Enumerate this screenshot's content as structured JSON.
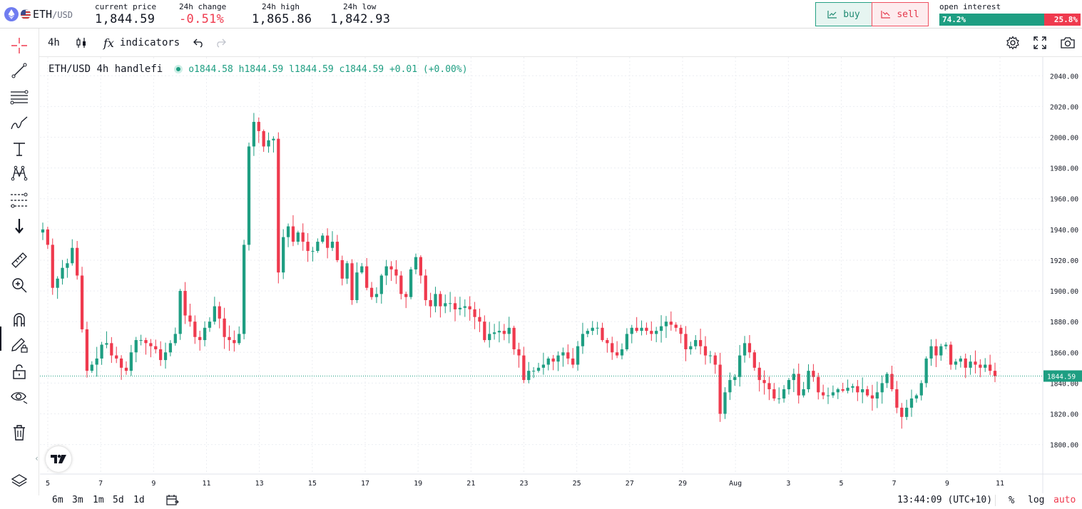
{
  "header": {
    "pair_base": "ETH",
    "pair_quote": "/USD",
    "stats": [
      {
        "label": "current price",
        "value": "1,844.59",
        "negative": false
      },
      {
        "label": "24h change",
        "value": "-0.51%",
        "negative": true
      },
      {
        "label": "24h high",
        "value": "1,865.86",
        "negative": false
      },
      {
        "label": "24h low",
        "value": "1,842.93",
        "negative": false
      }
    ],
    "buy_label": "buy",
    "sell_label": "sell",
    "open_interest_label": "open interest",
    "oi_long_pct": "74.2%",
    "oi_short_pct": "25.8%",
    "oi_long_fraction": 0.742
  },
  "toolbar": {
    "interval": "4h",
    "indicators_label": "indicators"
  },
  "legend": {
    "symbol": "ETH/USD",
    "interval": "4h",
    "source": "handlefi",
    "ohlc": "o1844.58 h1844.59 l1844.59 c1844.59 +0.01 (+0.00%)"
  },
  "bottom": {
    "ranges": [
      "6m",
      "3m",
      "1m",
      "5d",
      "1d"
    ],
    "clock": "13:44:09 (UTC+10)",
    "percent_label": "%",
    "log_label": "log",
    "auto_label": "auto"
  },
  "colors": {
    "up": "#1e9e82",
    "down": "#ef3a4e",
    "grid": "#eceef2"
  },
  "chart_data": {
    "type": "candlestick",
    "y_ticks": [
      "2040.00",
      "2020.00",
      "2000.00",
      "1980.00",
      "1960.00",
      "1940.00",
      "1920.00",
      "1900.00",
      "1880.00",
      "1860.00",
      "1840.00",
      "1820.00",
      "1800.00"
    ],
    "ylim": [
      1780.8,
      2052.2
    ],
    "x_ticks": [
      "5",
      "7",
      "9",
      "11",
      "13",
      "15",
      "17",
      "19",
      "21",
      "23",
      "25",
      "27",
      "29",
      "Aug",
      "3",
      "5",
      "7",
      "9",
      "11"
    ],
    "last_price": 1844.59,
    "last_price_label": "1844.59",
    "closes": [
      1940,
      1930,
      1902,
      1908,
      1915,
      1918,
      1928,
      1910,
      1875,
      1848,
      1852,
      1856,
      1865,
      1866,
      1858,
      1856,
      1850,
      1848,
      1860,
      1868,
      1868,
      1866,
      1864,
      1862,
      1855,
      1860,
      1866,
      1872,
      1900,
      1884,
      1880,
      1870,
      1868,
      1876,
      1880,
      1890,
      1882,
      1870,
      1868,
      1866,
      1872,
      1930,
      1994,
      2010,
      2004,
      1994,
      1998,
      1999,
      1912,
      1935,
      1942,
      1932,
      1938,
      1932,
      1926,
      1926,
      1932,
      1936,
      1928,
      1932,
      1920,
      1908,
      1918,
      1894,
      1912,
      1916,
      1902,
      1896,
      1898,
      1910,
      1916,
      1914,
      1910,
      1898,
      1896,
      1914,
      1922,
      1910,
      1894,
      1890,
      1898,
      1890,
      1892,
      1892,
      1888,
      1889,
      1890,
      1888,
      1883,
      1880,
      1868,
      1872,
      1873,
      1874,
      1872,
      1876,
      1862,
      1858,
      1842,
      1848,
      1848,
      1850,
      1852,
      1856,
      1854,
      1858,
      1860,
      1856,
      1852,
      1864,
      1872,
      1874,
      1876,
      1876,
      1868,
      1866,
      1860,
      1858,
      1862,
      1872,
      1876,
      1874,
      1876,
      1874,
      1872,
      1874,
      1877,
      1880,
      1878,
      1876,
      1872,
      1862,
      1864,
      1868,
      1864,
      1858,
      1858,
      1852,
      1820,
      1834,
      1842,
      1844,
      1858,
      1866,
      1860,
      1850,
      1842,
      1840,
      1836,
      1830,
      1830,
      1836,
      1842,
      1846,
      1832,
      1836,
      1848,
      1844,
      1834,
      1832,
      1832,
      1834,
      1836,
      1835,
      1837,
      1838,
      1834,
      1836,
      1832,
      1830,
      1834,
      1840,
      1846,
      1836,
      1824,
      1818,
      1824,
      1830,
      1832,
      1840,
      1856,
      1864,
      1858,
      1864,
      1865,
      1852,
      1854,
      1856,
      1850,
      1854,
      1852,
      1850,
      1852,
      1848,
      1844.59
    ]
  }
}
